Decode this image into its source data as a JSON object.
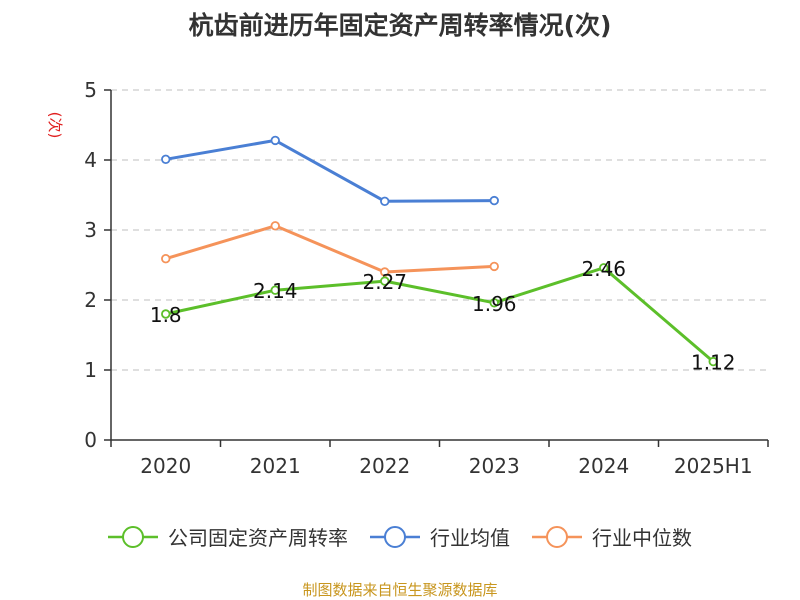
{
  "chart_data": {
    "type": "line",
    "title": "杭齿前进历年固定资产周转率情况(次)",
    "ylabel": "(次)",
    "xlabel": "",
    "categories": [
      "2020",
      "2021",
      "2022",
      "2023",
      "2024",
      "2025H1"
    ],
    "ylim": [
      0,
      5
    ],
    "yticks": [
      0,
      1,
      2,
      3,
      4,
      5
    ],
    "grid": true,
    "legend_position": "bottom",
    "series": [
      {
        "name": "公司固定资产周转率",
        "color": "#5cbf2a",
        "values": [
          1.8,
          2.14,
          2.27,
          1.96,
          2.46,
          1.12
        ],
        "labels": [
          "1.8",
          "2.14",
          "2.27",
          "1.96",
          "2.46",
          "1.12"
        ]
      },
      {
        "name": "行业均值",
        "color": "#4a7fd4",
        "values": [
          4.01,
          4.28,
          3.41,
          3.42,
          null,
          null
        ]
      },
      {
        "name": "行业中位数",
        "color": "#f5935a",
        "values": [
          2.59,
          3.06,
          2.4,
          2.48,
          null,
          null
        ]
      }
    ],
    "source": "制图数据来自恒生聚源数据库",
    "source_color": "#c8961e"
  }
}
